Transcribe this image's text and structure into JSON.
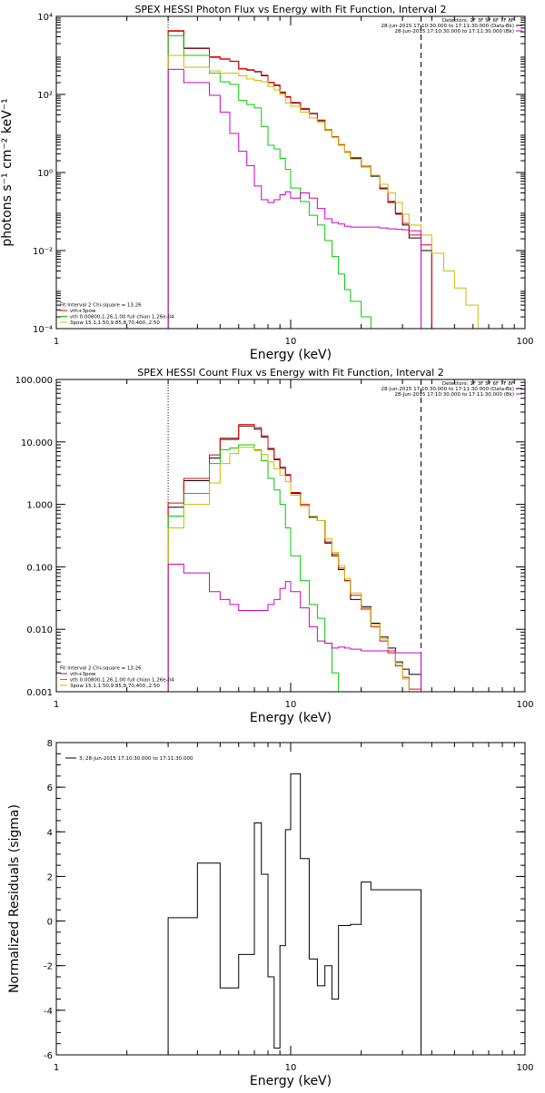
{
  "chart_data": [
    {
      "type": "line",
      "title": "SPEX HESSI Photon Flux vs Energy with Fit Function, Interval 2",
      "xlabel": "Energy (keV)",
      "ylabel": "photons s⁻¹ cm⁻² keV⁻¹",
      "xscale": "log",
      "yscale": "log",
      "xlim": [
        1,
        100
      ],
      "ylim": [
        0.0001,
        10000
      ],
      "xticks": [
        {
          "v": 1,
          "label": "1"
        },
        {
          "v": 10,
          "label": "10"
        },
        {
          "v": 100,
          "label": "100"
        }
      ],
      "yticks": [
        {
          "v": 0.0001,
          "label": "10⁻⁴"
        },
        {
          "v": 0.01,
          "label": "10⁻²"
        },
        {
          "v": 1,
          "label": "10⁰"
        },
        {
          "v": 100,
          "label": "10²"
        },
        {
          "v": 10000,
          "label": "10⁴"
        }
      ],
      "vlines": [
        {
          "x": 3.0,
          "style": "dotted"
        },
        {
          "x": 36.0,
          "style": "dashed"
        }
      ],
      "legend_tr_lines": [
        {
          "text": "Detectors: 1F 3F 5F 6F 7F 8F",
          "color": ""
        },
        {
          "text": "28-Jun-2015 17:10:30.000 to 17:11:30.000 (Data-Bk)",
          "color": "#000000"
        },
        {
          "text": "28-Jun-2015 17:10:30.000 to 17:11:30.000 (Bk)",
          "color": "#cc00cc"
        }
      ],
      "legend_bl_lines": [
        {
          "text": "Fit Interval 2   Chi-square = 13.26",
          "color": ""
        },
        {
          "text": "vth+3pow",
          "color": "#ee0000"
        },
        {
          "text": "vth 0.00800,1.26,1.00  full chian 1.26e-04",
          "color": "#00cc00"
        },
        {
          "text": "3pow 15.1,1.50,9.85,8.70,400.,2.50",
          "color": "#ccbb00"
        }
      ],
      "bin_edges": [
        3.0,
        3.5,
        4.0,
        4.5,
        5.0,
        5.5,
        6.0,
        6.5,
        7.0,
        7.5,
        8.0,
        8.5,
        9.0,
        9.5,
        10.0,
        11.0,
        12.0,
        13.0,
        14.0,
        15.0,
        16.0,
        17.0,
        18.0,
        20.0,
        22.0,
        24.0,
        26.0,
        28.0,
        30.0,
        32.0,
        36.0,
        40.0,
        45.0,
        50.0,
        56.0,
        63.0
      ],
      "series": [
        {
          "color": "#000000",
          "values": [
            4200,
            1500,
            1500,
            900,
            800,
            700,
            450,
            420,
            380,
            300,
            200,
            170,
            110,
            85,
            60,
            42,
            32,
            21,
            12,
            8,
            5,
            3.3,
            2.3,
            1.4,
            0.8,
            0.4,
            0.18,
            0.09,
            0.045,
            0.021,
            0.01
          ]
        },
        {
          "color": "#ee0000",
          "values": [
            4300,
            1550,
            1550,
            920,
            820,
            710,
            460,
            430,
            390,
            310,
            205,
            175,
            115,
            88,
            62,
            44,
            33,
            22,
            12.5,
            8.3,
            5.2,
            3.4,
            2.4,
            1.45,
            0.85,
            0.38,
            0.17,
            0.085,
            0.05,
            0.025,
            0.014
          ]
        },
        {
          "color": "#00cc00",
          "values": [
            3200,
            1000,
            1000,
            350,
            210,
            180,
            70,
            55,
            45,
            15,
            5,
            4,
            2.3,
            1.2,
            0.4,
            0.18,
            0.08,
            0.045,
            0.018,
            0.007,
            0.0025,
            0.001,
            0.0005,
            0.0002,
            8e-05
          ]
        },
        {
          "color": "#ccbb00",
          "values": [
            1000,
            500,
            500,
            400,
            350,
            350,
            300,
            250,
            230,
            210,
            160,
            130,
            100,
            60,
            50,
            35,
            25,
            19,
            12,
            8,
            5,
            3.3,
            2.2,
            1.4,
            0.85,
            0.5,
            0.3,
            0.17,
            0.085,
            0.045,
            0.025,
            0.0085,
            0.003,
            0.0011,
            0.0004
          ]
        },
        {
          "color": "#cc00cc",
          "values": [
            440,
            200,
            200,
            95,
            35,
            10,
            3.5,
            1.5,
            0.45,
            0.2,
            0.17,
            0.2,
            0.27,
            0.32,
            0.22,
            0.3,
            0.22,
            0.12,
            0.065,
            0.052,
            0.048,
            0.042,
            0.04,
            0.04,
            0.04,
            0.038,
            0.036,
            0.035,
            0.034,
            0.032
          ]
        }
      ]
    },
    {
      "type": "line",
      "title": "SPEX HESSI Count Flux vs Energy with Fit Function, Interval 2",
      "xlabel": "Energy (keV)",
      "ylabel": "",
      "xscale": "log",
      "yscale": "log",
      "xlim": [
        1,
        100
      ],
      "ylim": [
        0.001,
        100
      ],
      "xticks": [
        {
          "v": 1,
          "label": "1"
        },
        {
          "v": 10,
          "label": "10"
        },
        {
          "v": 100,
          "label": "100"
        }
      ],
      "yticks": [
        {
          "v": 0.001,
          "label": "0.001"
        },
        {
          "v": 0.01,
          "label": "0.010"
        },
        {
          "v": 0.1,
          "label": "0.100"
        },
        {
          "v": 1,
          "label": "1.000"
        },
        {
          "v": 10,
          "label": "10.000"
        },
        {
          "v": 100,
          "label": "100.000"
        }
      ],
      "vlines": [
        {
          "x": 3.0,
          "style": "dotted"
        },
        {
          "x": 36.0,
          "style": "dashed"
        }
      ],
      "legend_tr_lines": [
        {
          "text": "Detectors: 1F 3F 5F 6F 7F 8F",
          "color": ""
        },
        {
          "text": "28-Jun-2015 17:10:30.000 to 17:11:30.000 (Data-Bk)",
          "color": "#000000"
        },
        {
          "text": "28-Jun-2015 17:10:30.000 to 17:11:30.000 (Bk)",
          "color": "#cc00cc"
        }
      ],
      "legend_bl_lines": [
        {
          "text": "Fit Interval 2   Chi-square = 13.26",
          "color": ""
        },
        {
          "text": "vth+3pow",
          "color": "#ee0000"
        },
        {
          "text": "vth 0.00800,1.26,1.00  full chian 1.26e-04",
          "color": "#00cc00"
        },
        {
          "text": "3pow 15.1,1.50,9.85,8.70,400.,2.50",
          "color": "#ccbb00"
        }
      ],
      "bin_edges": [
        3.0,
        3.5,
        4.0,
        4.5,
        5.0,
        5.5,
        6.0,
        6.5,
        7.0,
        7.5,
        8.0,
        8.5,
        9.0,
        9.5,
        10.0,
        11.0,
        12.0,
        13.0,
        14.0,
        15.0,
        16.0,
        17.0,
        18.0,
        20.0,
        22.0,
        24.0,
        26.0,
        28.0,
        30.0,
        32.0,
        36.0
      ],
      "series": [
        {
          "color": "#000000",
          "values": [
            0.9,
            2.4,
            2.4,
            5.5,
            11,
            11,
            18,
            18,
            16,
            12,
            7.6,
            5.2,
            3.9,
            2.9,
            1.5,
            0.95,
            0.62,
            0.55,
            0.24,
            0.15,
            0.09,
            0.06,
            0.03,
            0.023,
            0.0125,
            0.0075,
            0.005,
            0.003,
            0.0023,
            0.0019
          ]
        },
        {
          "color": "#ee0000",
          "values": [
            1.05,
            2.6,
            2.6,
            6.2,
            11.5,
            11.5,
            19,
            19,
            17,
            12.5,
            7.9,
            5.4,
            3.8,
            3.0,
            1.55,
            1.0,
            0.65,
            0.55,
            0.25,
            0.16,
            0.095,
            0.06,
            0.035,
            0.021,
            0.011,
            0.0065,
            0.0042,
            0.0026,
            0.0017,
            0.0011
          ]
        },
        {
          "color": "#00cc00",
          "values": [
            0.65,
            1.5,
            1.5,
            4.5,
            7.5,
            8,
            9,
            9,
            7.5,
            5,
            2.6,
            1.7,
            1.0,
            0.42,
            0.15,
            0.06,
            0.025,
            0.015,
            0.006,
            0.002,
            0.001,
            0.0005
          ]
        },
        {
          "color": "#ccbb00",
          "values": [
            0.42,
            1.0,
            1.0,
            2.2,
            4.5,
            6.5,
            8.2,
            8.2,
            7.3,
            6.3,
            4.8,
            3.7,
            2.9,
            2.3,
            1.4,
            0.95,
            0.65,
            0.55,
            0.28,
            0.17,
            0.105,
            0.065,
            0.038,
            0.022,
            0.012,
            0.007,
            0.0045,
            0.0028,
            0.0016,
            0.0009
          ]
        },
        {
          "color": "#cc00cc",
          "values": [
            0.11,
            0.08,
            0.08,
            0.04,
            0.03,
            0.025,
            0.02,
            0.02,
            0.02,
            0.02,
            0.025,
            0.03,
            0.045,
            0.058,
            0.04,
            0.022,
            0.011,
            0.0065,
            0.006,
            0.005,
            0.0052,
            0.005,
            0.0048,
            0.0045,
            0.0045,
            0.0045,
            0.0045,
            0.0042,
            0.0042,
            0.0042
          ]
        }
      ]
    },
    {
      "type": "line",
      "title": "",
      "xlabel": "Energy (keV)",
      "ylabel": "Normalized Residuals (sigma)",
      "xscale": "log",
      "yscale": "linear",
      "xlim": [
        1,
        100
      ],
      "ylim": [
        -6,
        8
      ],
      "xticks": [
        {
          "v": 1,
          "label": "1"
        },
        {
          "v": 10,
          "label": "10"
        },
        {
          "v": 100,
          "label": "100"
        }
      ],
      "yticks": [
        {
          "v": -6,
          "label": "-6"
        },
        {
          "v": -4,
          "label": "-4"
        },
        {
          "v": -2,
          "label": "-2"
        },
        {
          "v": 0,
          "label": "0"
        },
        {
          "v": 2,
          "label": "2"
        },
        {
          "v": 4,
          "label": "4"
        },
        {
          "v": 6,
          "label": "6"
        },
        {
          "v": 8,
          "label": "8"
        }
      ],
      "vlines": [],
      "legend_tr_lines": [],
      "legend_bl_lines": [],
      "legend_tl_lines": [
        {
          "text": "3, 28-Jun-2015 17:10:30.000 to 17:11:30.000",
          "color": "#000000"
        }
      ],
      "bin_edges": [
        3.0,
        3.5,
        4.0,
        4.5,
        5.0,
        5.5,
        6.0,
        6.5,
        7.0,
        7.5,
        8.0,
        8.5,
        9.0,
        9.5,
        10.0,
        11.0,
        12.0,
        13.0,
        14.0,
        15.0,
        16.0,
        17.0,
        18.0,
        20.0,
        22.0,
        24.0,
        26.0,
        28.0,
        30.0,
        32.0,
        36.0
      ],
      "series": [
        {
          "color": "#000000",
          "values": [
            0.15,
            0.15,
            2.6,
            2.6,
            -3.0,
            -3.0,
            -1.5,
            -1.5,
            4.4,
            2.1,
            -2.5,
            -5.7,
            -1.1,
            4.1,
            6.6,
            2.8,
            -1.7,
            -2.9,
            -2.0,
            -3.5,
            -0.2,
            -0.2,
            -0.15,
            1.75,
            1.4,
            1.4,
            1.4,
            1.4,
            1.4,
            1.4
          ]
        }
      ]
    }
  ]
}
